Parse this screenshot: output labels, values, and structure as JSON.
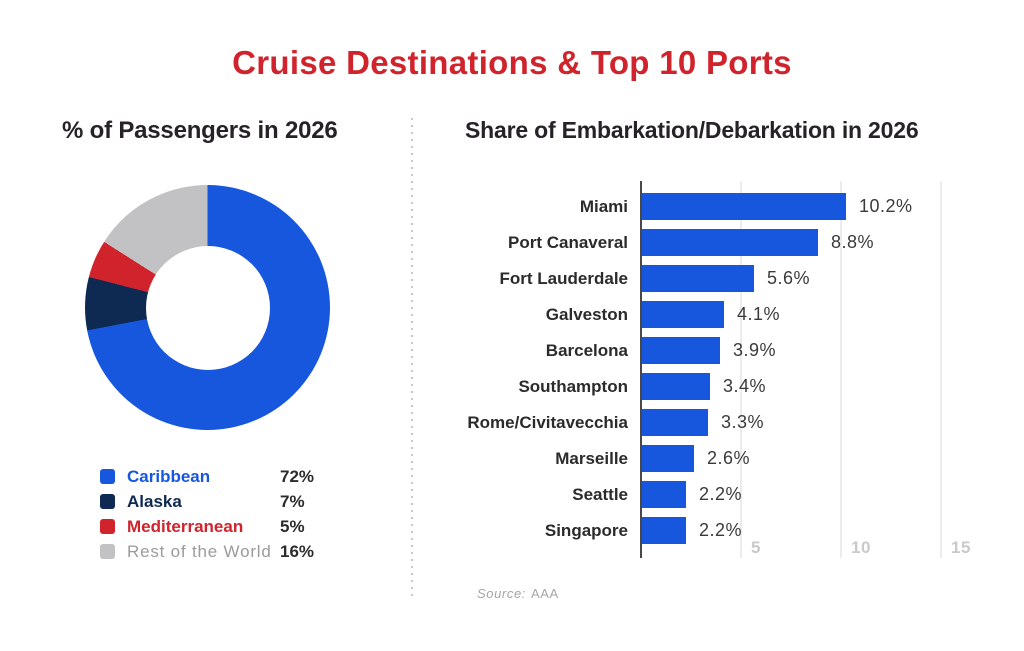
{
  "page": {
    "title": "Cruise Destinations & Top 10 Ports",
    "title_color": "#d0232c",
    "background": "#ffffff",
    "divider_color": "#c9c9c9",
    "source_prefix": "Source:",
    "source_value": "AAA"
  },
  "left_section": {
    "heading": "% of Passengers in 2026"
  },
  "right_section": {
    "heading": "Share of Embarkation/Debarkation in 2026"
  },
  "chart_data": [
    {
      "type": "pie",
      "subtype": "donut",
      "title": "% of Passengers in 2026",
      "categories": [
        "Caribbean",
        "Alaska",
        "Mediterranean",
        "Rest of the World"
      ],
      "values": [
        72,
        7,
        5,
        16
      ],
      "value_labels": [
        "72%",
        "7%",
        "5%",
        "16%"
      ],
      "slice_colors": [
        "#1757de",
        "#0f2a52",
        "#d0232c",
        "#c2c2c4"
      ],
      "legend_text_colors": [
        "#1757de",
        "#0f2a52",
        "#d0232c",
        "#9b9b9b"
      ],
      "legend_muted": [
        false,
        false,
        false,
        true
      ],
      "start_angle_deg": 0,
      "direction": "clockwise",
      "legend_position": "bottom-left",
      "hole_ratio": 0.51
    },
    {
      "type": "bar",
      "orientation": "horizontal",
      "title": "Share of Embarkation/Debarkation in 2026",
      "categories": [
        "Miami",
        "Port Canaveral",
        "Fort Lauderdale",
        "Galveston",
        "Barcelona",
        "Southampton",
        "Rome/Civitavecchia",
        "Marseille",
        "Seattle",
        "Singapore"
      ],
      "values": [
        10.2,
        8.8,
        5.6,
        4.1,
        3.9,
        3.4,
        3.3,
        2.6,
        2.2,
        2.2
      ],
      "value_labels": [
        "10.2%",
        "8.8%",
        "5.6%",
        "4.1%",
        "3.9%",
        "3.4%",
        "3.3%",
        "2.6%",
        "2.2%",
        "2.2%"
      ],
      "bar_color": "#1757de",
      "xlim": [
        0,
        16
      ],
      "ticks": [
        5,
        10,
        15
      ],
      "tick_labels": [
        "5",
        "10",
        "15"
      ],
      "grid": true,
      "xlabel": "",
      "ylabel": ""
    }
  ]
}
